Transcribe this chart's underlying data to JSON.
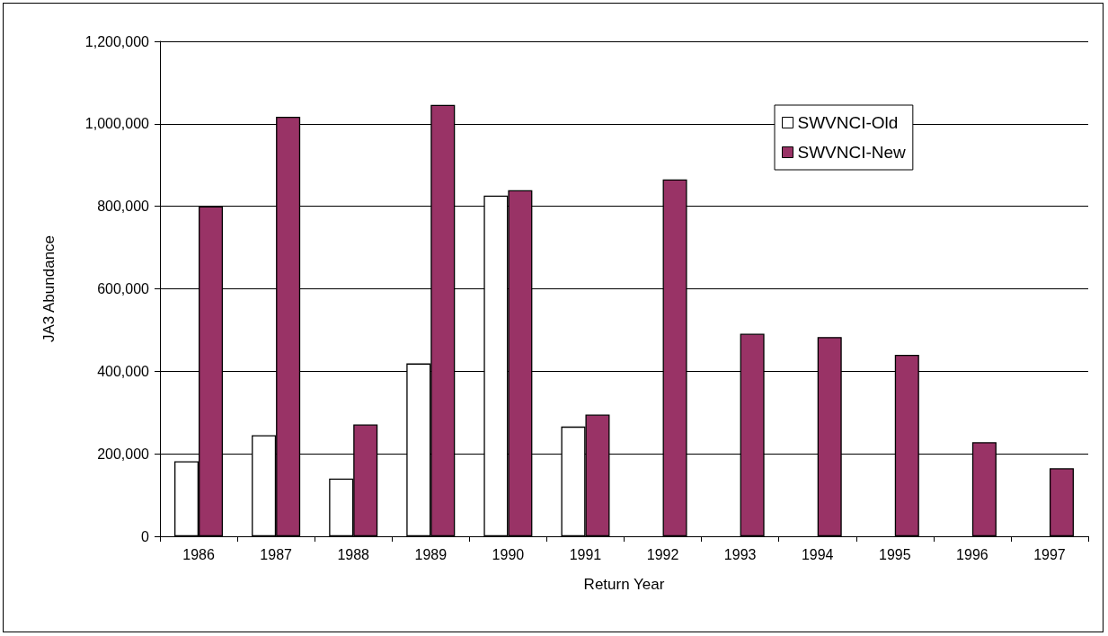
{
  "chart_data": {
    "type": "bar",
    "xlabel": "Return Year",
    "ylabel": "JA3 Abundance",
    "categories": [
      "1986",
      "1987",
      "1988",
      "1989",
      "1990",
      "1991",
      "1992",
      "1993",
      "1994",
      "1995",
      "1996",
      "1997"
    ],
    "series": [
      {
        "name": "SWVNCI-Old",
        "color": "#ffffff",
        "values": [
          182000,
          245000,
          140000,
          419000,
          826000,
          266000,
          null,
          null,
          null,
          null,
          null,
          null
        ]
      },
      {
        "name": "SWVNCI-New",
        "color": "#993366",
        "values": [
          800000,
          1017000,
          271000,
          1046000,
          839000,
          295000,
          865000,
          491000,
          483000,
          440000,
          228000,
          165000
        ]
      }
    ],
    "ylim": [
      0,
      1200000
    ],
    "yticks": [
      0,
      {
        "value": 200000,
        "label": "200,000"
      },
      {
        "value": 400000,
        "label": "400,000"
      },
      {
        "value": 600000,
        "label": "600,000"
      },
      {
        "value": 800000,
        "label": "800,000"
      },
      {
        "value": 1000000,
        "label": "1,000,000"
      },
      {
        "value": 1200000,
        "label": "1,200,000"
      }
    ],
    "grid": "y",
    "legend": "top right"
  }
}
